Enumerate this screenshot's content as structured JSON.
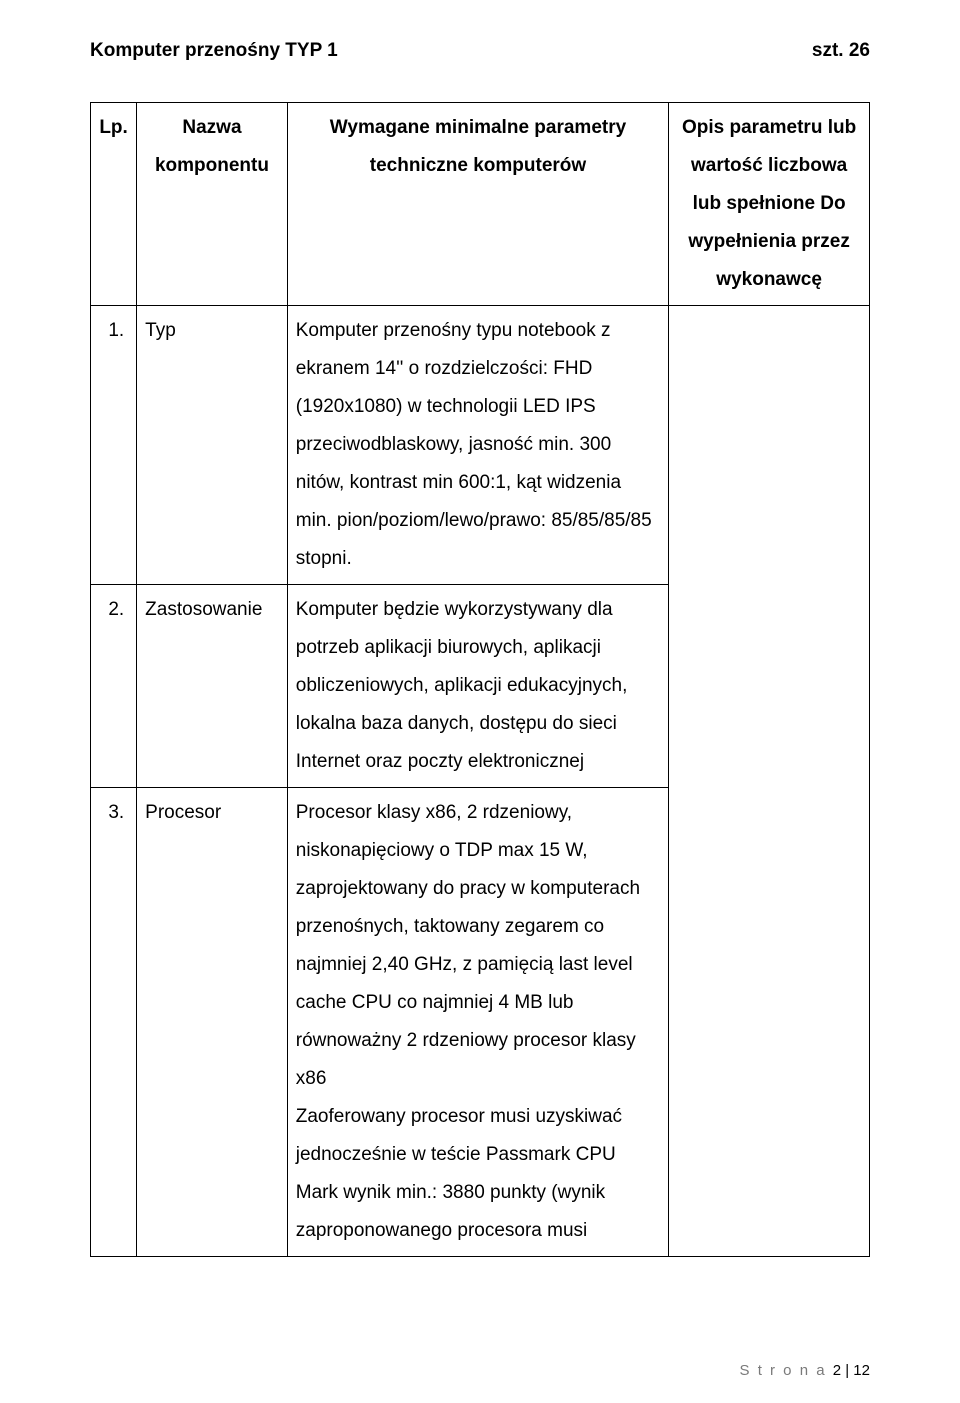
{
  "header": {
    "title_left": "Komputer przenośny  TYP 1",
    "title_right": "szt. 26"
  },
  "table": {
    "head": {
      "lp": "Lp.",
      "name": "Nazwa komponentu",
      "req": "Wymagane minimalne parametry techniczne komputerów",
      "resp": "Opis parametru lub wartość liczbowa lub spełnione Do wypełnienia przez wykonawcę"
    },
    "rows": [
      {
        "n": "1.",
        "name": "Typ",
        "req": "Komputer przenośny typu notebook z ekranem 14'' o rozdzielczości: FHD (1920x1080) w technologii LED IPS przeciwodblaskowy, jasność min. 300 nitów, kontrast min 600:1, kąt widzenia min. pion/poziom/lewo/prawo: 85/85/85/85 stopni."
      },
      {
        "n": "2.",
        "name": "Zastosowanie",
        "req": "Komputer będzie wykorzystywany dla potrzeb aplikacji biurowych, aplikacji obliczeniowych, aplikacji edukacyjnych, lokalna baza danych, dostępu do sieci Internet oraz poczty elektronicznej"
      },
      {
        "n": "3.",
        "name": "Procesor",
        "req": "Procesor klasy x86, 2 rdzeniowy, niskonapięciowy o TDP max 15 W, zaprojektowany do pracy w komputerach przenośnych, taktowany zegarem co najmniej 2,40 GHz, z pamięcią last level cache CPU co najmniej 4 MB lub równoważny 2 rdzeniowy procesor klasy x86\nZaoferowany procesor musi uzyskiwać jednocześnie w teście Passmark CPU Mark wynik min.: 3880 punkty (wynik zaproponowanego procesora musi"
      }
    ]
  },
  "footer": {
    "label": "S t r o n a",
    "page": "2 | 12"
  }
}
